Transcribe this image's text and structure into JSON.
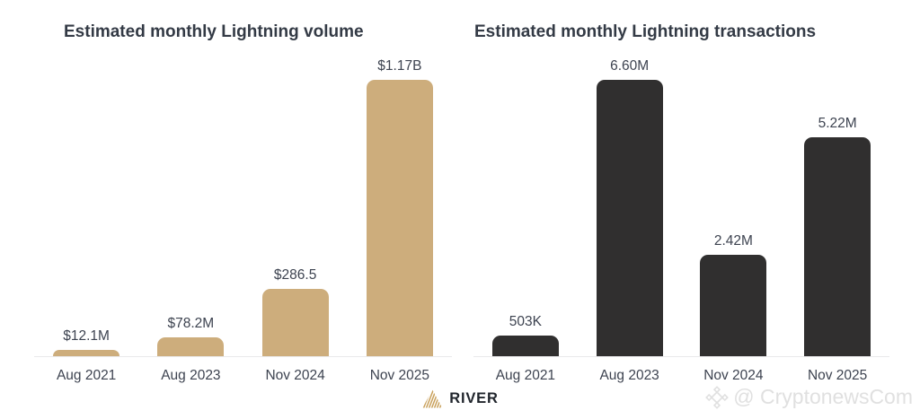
{
  "page": {
    "background": "#ffffff"
  },
  "branding": {
    "logo_icon": "river-mountain-icon",
    "logo_text": "RIVER",
    "logo_icon_color": "#c9a15c",
    "logo_text_color": "#20252c"
  },
  "watermark": {
    "icon": "diamond-icon",
    "text": "@ CryptonewsCom",
    "color": "#e0e0e0"
  },
  "chart_data": [
    {
      "type": "bar",
      "title": "Estimated monthly Lightning volume",
      "categories": [
        "Aug 2021",
        "Aug 2023",
        "Nov 2024",
        "Nov 2025"
      ],
      "values": [
        12.1,
        78.2,
        286.5,
        1170
      ],
      "value_labels": [
        "$12.1M",
        "$78.2M",
        "$286.5",
        "$1.17B"
      ],
      "ylim": [
        0,
        1170
      ],
      "bar_color": "#cdad7c",
      "xlabel": "",
      "ylabel": "",
      "grid": false,
      "legend": false
    },
    {
      "type": "bar",
      "title": "Estimated monthly Lightning transactions",
      "categories": [
        "Aug 2021",
        "Aug 2023",
        "Nov 2024",
        "Nov 2025"
      ],
      "values": [
        0.503,
        6.6,
        2.42,
        5.22
      ],
      "value_labels": [
        "503K",
        "6.60M",
        "2.42M",
        "5.22M"
      ],
      "ylim": [
        0,
        6.6
      ],
      "bar_color": "#302f2f",
      "xlabel": "",
      "ylabel": "",
      "grid": false,
      "legend": false
    }
  ]
}
